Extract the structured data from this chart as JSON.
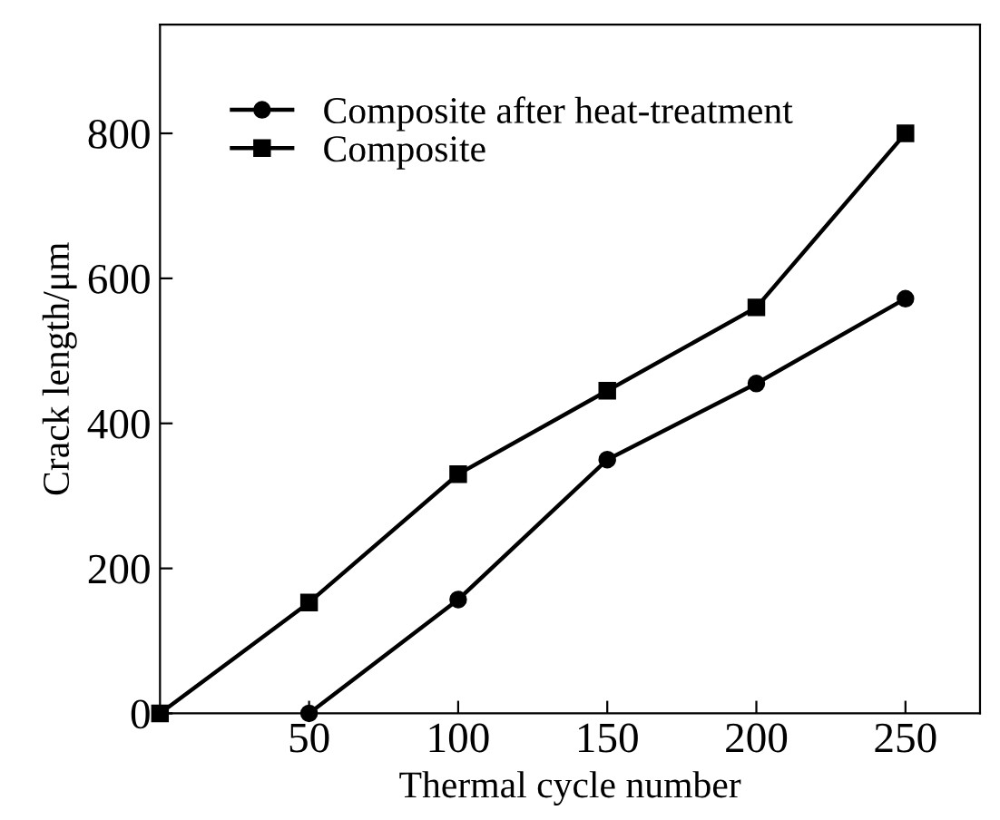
{
  "chart_data": {
    "type": "line",
    "xlabel": "Thermal cycle number",
    "ylabel": "Crack length/μm",
    "xlim": [
      0,
      275
    ],
    "ylim": [
      0,
      950
    ],
    "xticks": [
      50,
      100,
      150,
      200,
      250
    ],
    "yticks": [
      0,
      200,
      400,
      600,
      800
    ],
    "grid": false,
    "legend": "top left",
    "line_style": "solid",
    "series": [
      {
        "name": "Composite after heat-treatment",
        "color": "#000000",
        "marker": "circle",
        "x": [
          50,
          100,
          150,
          200,
          250
        ],
        "values": [
          0,
          157,
          350,
          455,
          572
        ]
      },
      {
        "name": "Composite",
        "color": "#000000",
        "marker": "square",
        "x": [
          0,
          50,
          100,
          150,
          200,
          250
        ],
        "values": [
          0,
          153,
          330,
          445,
          560,
          800
        ]
      }
    ]
  }
}
